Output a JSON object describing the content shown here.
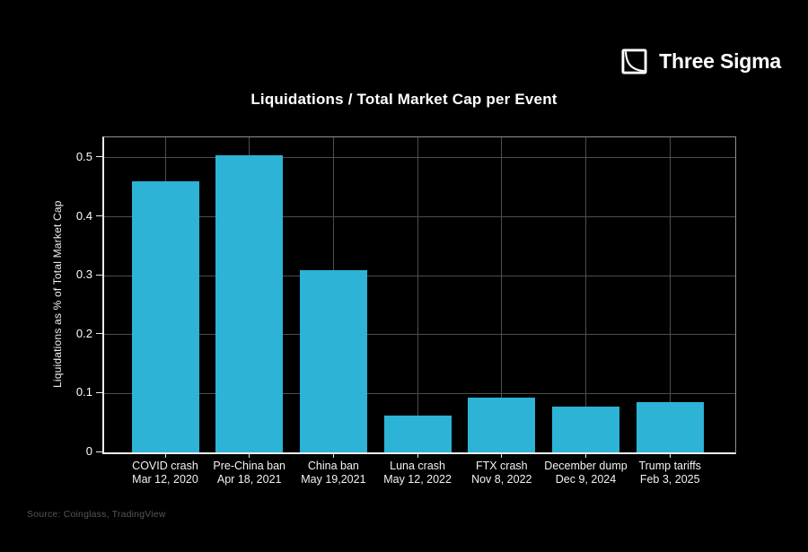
{
  "page": {
    "background": "#000000",
    "text_color": "#ffffff",
    "muted_text_color": "#565656",
    "grid_color": "#4d4d4d",
    "axis_color": "#ededed",
    "frame_color": "#8f8f8f"
  },
  "logo": {
    "text": "Three Sigma",
    "icon": "square-decay-curve-icon"
  },
  "title": "Liquidations / Total Market Cap per Event",
  "source": "Source: Coinglass, TradingView",
  "chart_data": {
    "type": "bar",
    "title": "Liquidations / Total Market Cap per Event",
    "xlabel": "",
    "ylabel": "Liquidations as % of Total Market Cap",
    "categories": [
      "COVID crash",
      "Pre-China ban",
      "China ban",
      "Luna crash",
      "FTX crash",
      "December dump",
      "Trump tariffs"
    ],
    "category_dates": [
      "Mar 12, 2020",
      "Apr 18, 2021",
      "May 19,2021",
      "May 12, 2022",
      "Nov 8, 2022",
      "Dec 9, 2024",
      "Feb 3, 2025"
    ],
    "values": [
      0.46,
      0.505,
      0.31,
      0.063,
      0.093,
      0.077,
      0.086
    ],
    "ytick_labels": [
      "0",
      "0.1",
      "0.2",
      "0.3",
      "0.4",
      "0.5"
    ],
    "yticks": [
      0,
      0.1,
      0.2,
      0.3,
      0.4,
      0.5
    ],
    "ylim": [
      0,
      0.535
    ],
    "grid": true,
    "legend_position": "none",
    "bar_color": "#2DB3D5"
  }
}
